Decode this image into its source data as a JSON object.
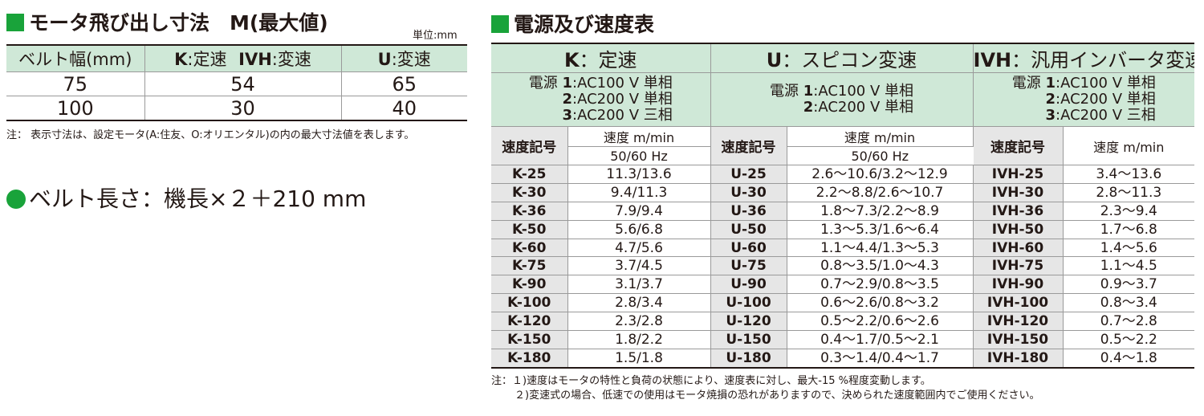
{
  "left": {
    "heading": "モータ飛び出し寸法　M(最大値)",
    "unit": "単位:mm",
    "header": {
      "belt_width": "ベルト幅(mm)",
      "k_letter": "K",
      "k_text": ":定速",
      "ivh_letter": "IVH",
      "ivh_text": ":変速",
      "u_letter": "U",
      "u_text": ":変速"
    },
    "rows": [
      {
        "width": "75",
        "kivh": "54",
        "u": "65"
      },
      {
        "width": "100",
        "kivh": "30",
        "u": "40"
      }
    ],
    "note": "注：  表示寸法は、設定モータ(A:住友、O:オリエンタル)の内の最大寸法値を表します。",
    "belt_length": "ベルト長さ：機長×２＋210 mm"
  },
  "right": {
    "heading": "電源及び速度表",
    "groups": [
      {
        "letter": "K",
        "text": "：定速"
      },
      {
        "letter": "U",
        "text": "：スピコン変速"
      },
      {
        "letter": "IVH",
        "text": "：汎用インバータ変速"
      }
    ],
    "power": {
      "label": "電源",
      "k": [
        {
          "n": "1",
          "t": ":AC100 V 単相"
        },
        {
          "n": "2",
          "t": ":AC200 V 単相"
        },
        {
          "n": "3",
          "t": ":AC200 V 三相"
        }
      ],
      "u": [
        {
          "n": "1",
          "t": ":AC100 V 単相"
        },
        {
          "n": "2",
          "t": ":AC200 V 単相"
        }
      ],
      "ivh": [
        {
          "n": "1",
          "t": ":AC100 V 単相"
        },
        {
          "n": "2",
          "t": ":AC200 V 単相"
        },
        {
          "n": "3",
          "t": ":AC200 V 三相"
        }
      ]
    },
    "sub": {
      "code": "速度記号",
      "speed": "速度 m/min",
      "hz": "50/60 Hz"
    },
    "rows": [
      {
        "k": "K-25",
        "kv": "11.3/13.6",
        "u": "U-25",
        "uv": "2.6〜10.6/3.2〜12.9",
        "i": "IVH-25",
        "iv": "3.4〜13.6"
      },
      {
        "k": "K-30",
        "kv": "9.4/11.3",
        "u": "U-30",
        "uv": "2.2〜8.8/2.6〜10.7",
        "i": "IVH-30",
        "iv": "2.8〜11.3"
      },
      {
        "k": "K-36",
        "kv": "7.9/9.4",
        "u": "U-36",
        "uv": "1.8〜7.3/2.2〜8.9",
        "i": "IVH-36",
        "iv": "2.3〜9.4"
      },
      {
        "k": "K-50",
        "kv": "5.6/6.8",
        "u": "U-50",
        "uv": "1.3〜5.3/1.6〜6.4",
        "i": "IVH-50",
        "iv": "1.7〜6.8"
      },
      {
        "k": "K-60",
        "kv": "4.7/5.6",
        "u": "U-60",
        "uv": "1.1〜4.4/1.3〜5.3",
        "i": "IVH-60",
        "iv": "1.4〜5.6"
      },
      {
        "k": "K-75",
        "kv": "3.7/4.5",
        "u": "U-75",
        "uv": "0.8〜3.5/1.0〜4.3",
        "i": "IVH-75",
        "iv": "1.1〜4.5"
      },
      {
        "k": "K-90",
        "kv": "3.1/3.7",
        "u": "U-90",
        "uv": "0.7〜2.9/0.8〜3.5",
        "i": "IVH-90",
        "iv": "0.9〜3.7"
      },
      {
        "k": "K-100",
        "kv": "2.8/3.4",
        "u": "U-100",
        "uv": "0.6〜2.6/0.8〜3.2",
        "i": "IVH-100",
        "iv": "0.8〜3.4"
      },
      {
        "k": "K-120",
        "kv": "2.3/2.8",
        "u": "U-120",
        "uv": "0.5〜2.2/0.6〜2.6",
        "i": "IVH-120",
        "iv": "0.7〜2.8"
      },
      {
        "k": "K-150",
        "kv": "1.8/2.2",
        "u": "U-150",
        "uv": "0.4〜1.7/0.5〜2.1",
        "i": "IVH-150",
        "iv": "0.5〜2.2"
      },
      {
        "k": "K-180",
        "kv": "1.5/1.8",
        "u": "U-180",
        "uv": "0.3〜1.4/0.4〜1.7",
        "i": "IVH-180",
        "iv": "0.4〜1.8"
      }
    ],
    "notes": [
      "注：１)速度はモータの特性と負荷の状態により、速度表に対し、最大-15 %程度変動します。",
      "２)変速式の場合、低速での使用はモータ焼損の恐れがありますので、決められた速度範囲内でご使用ください。"
    ]
  },
  "colors": {
    "accent_green": "#19a33a",
    "header_green": "#cfe8d7",
    "code_gray": "#e6e6e6",
    "text": "#231815"
  }
}
